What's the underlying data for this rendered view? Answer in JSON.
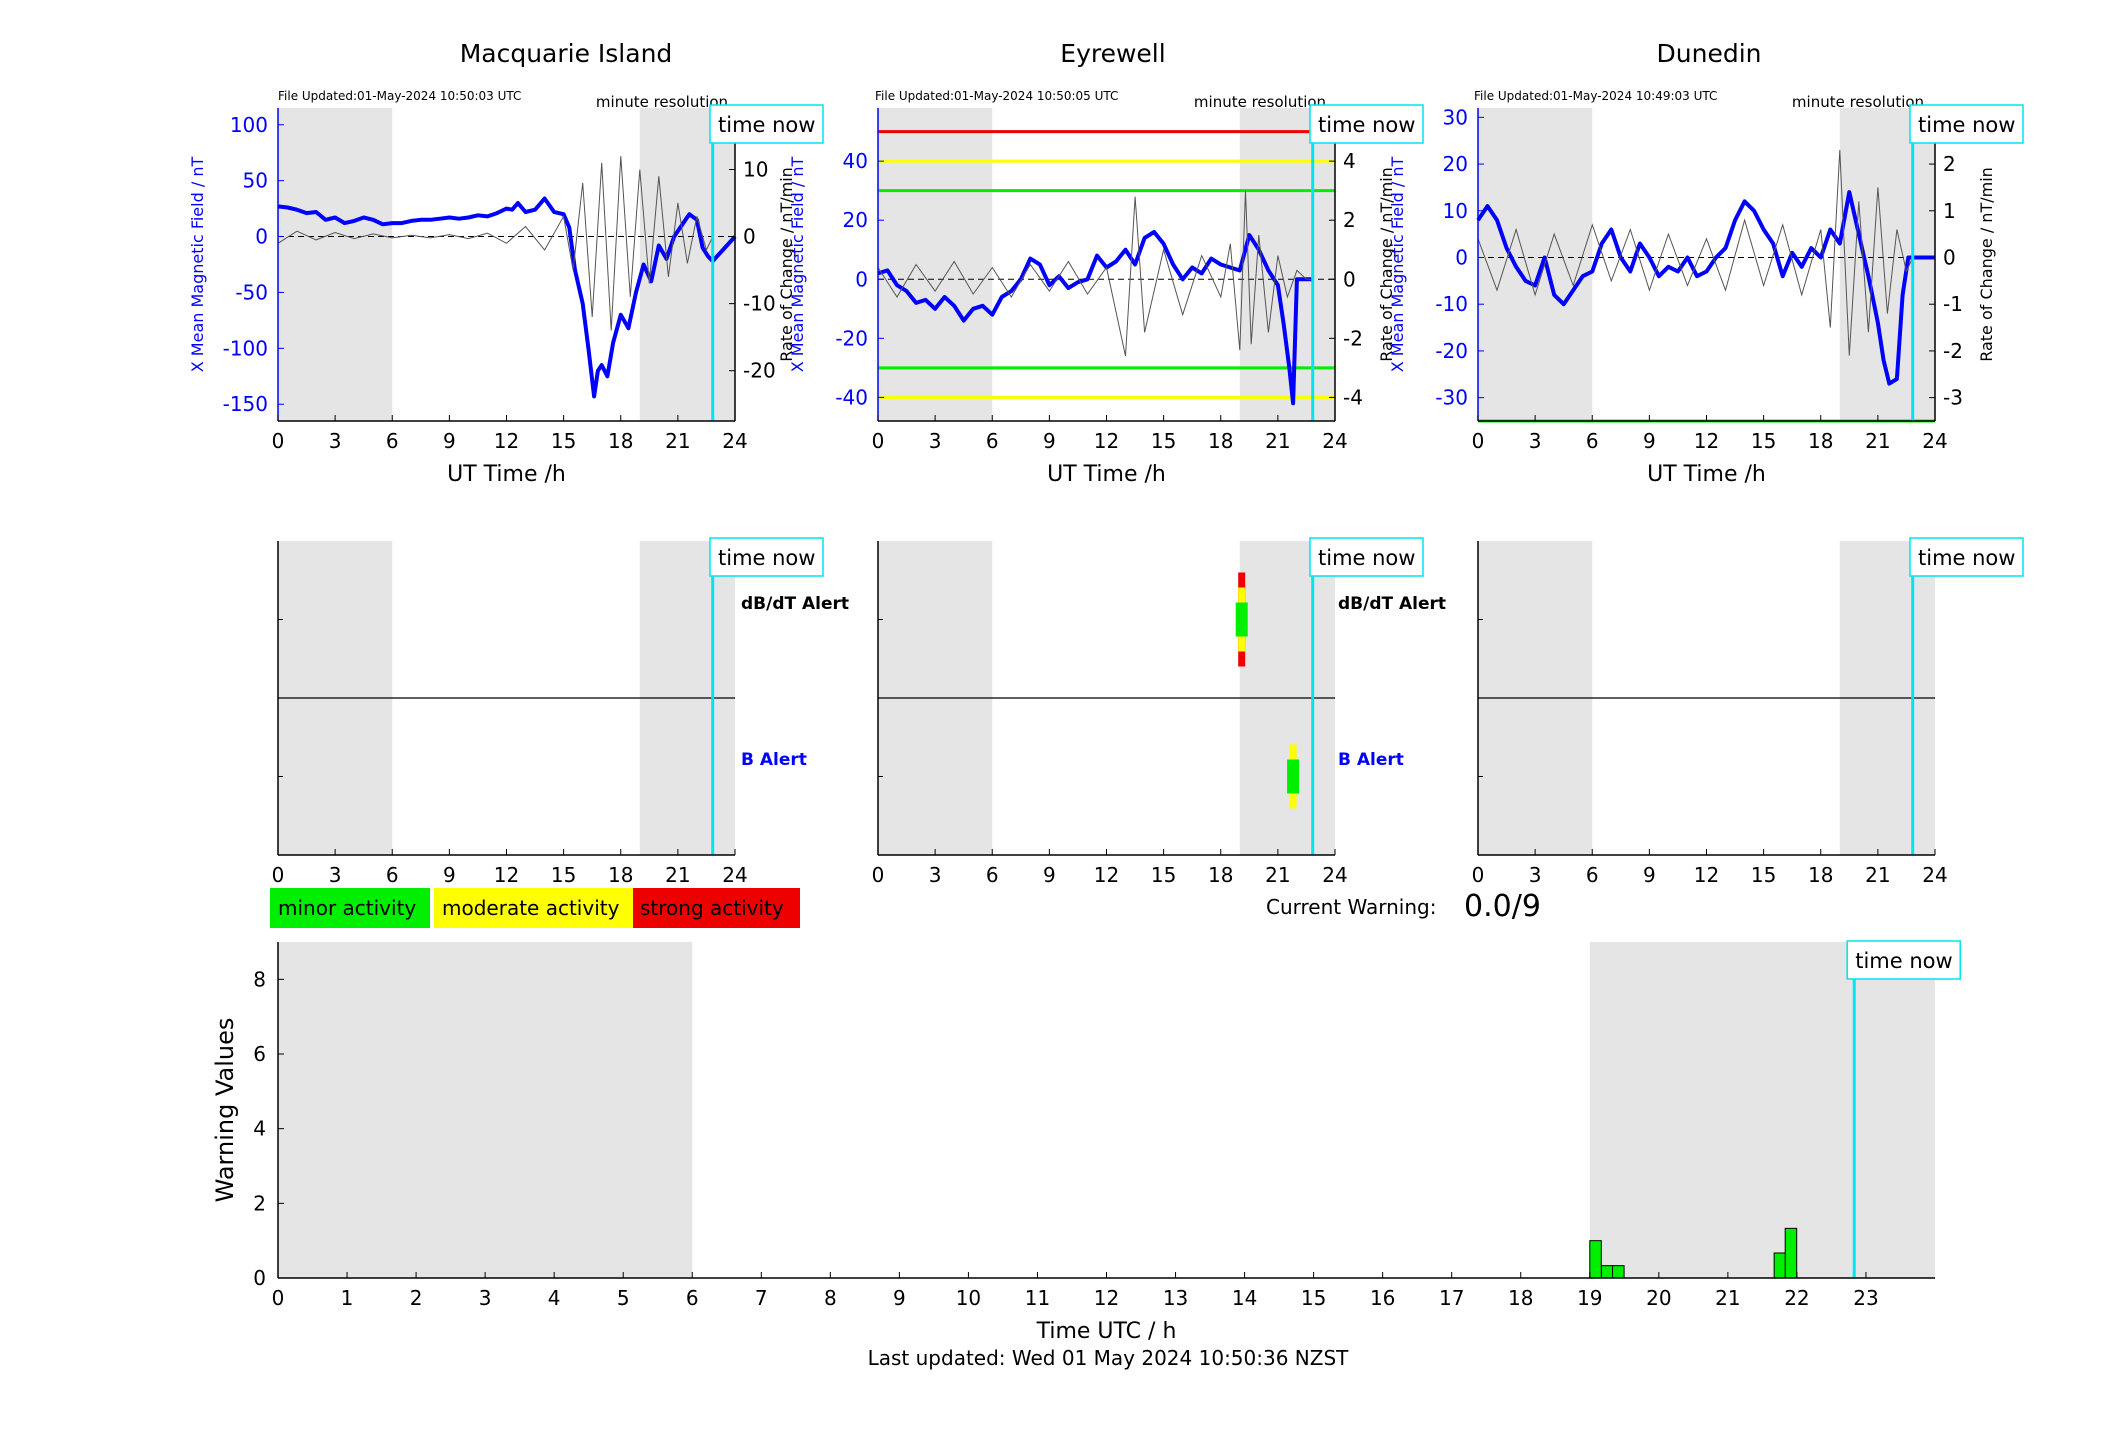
{
  "colors": {
    "field": "#0000ff",
    "rate": "#555555",
    "cyan": "#00e5ee",
    "night": "#e5e5e5",
    "minor": "#00ee00",
    "moderate": "#ffff00",
    "strong": "#ee0000"
  },
  "time_now_label": "time now",
  "minute_resolution_label": "minute resolution",
  "legend": {
    "minor": "minor activity",
    "moderate": "moderate activity",
    "strong": "strong activity"
  },
  "current_warning": {
    "label": "Current Warning:",
    "value": "0.0/9"
  },
  "footer": {
    "last_updated": "Last updated: Wed 01 May 2024 10:50:36 NZST"
  },
  "alerts": {
    "dbdt_label": "dB/dT Alert",
    "b_label": "B Alert"
  },
  "chart_data": [
    {
      "type": "line",
      "title": "Macquarie Island",
      "file_updated": "File Updated:01-May-2024 10:50:03 UTC",
      "xlabel": "UT Time /h",
      "ylabel": "X Mean Magnetic Field / nT",
      "ylabel_right": "Rate of Change / nT/min",
      "xlim": [
        0,
        24
      ],
      "ylim": [
        -165,
        115
      ],
      "ylim_right": [
        -27.5,
        19.17
      ],
      "xticks": [
        0,
        3,
        6,
        9,
        12,
        15,
        18,
        21,
        24
      ],
      "yticks": [
        100,
        50,
        0,
        -50,
        -100,
        -150
      ],
      "yticks_right": [
        10,
        0,
        -10,
        -20
      ],
      "night_bands": [
        [
          0,
          6
        ],
        [
          19,
          24
        ]
      ],
      "time_now": 22.83,
      "threshold_lines": [],
      "series": [
        {
          "style": "field",
          "x": [
            0,
            0.5,
            1,
            1.5,
            2,
            2.5,
            3,
            3.5,
            4,
            4.5,
            5,
            5.5,
            6,
            6.5,
            7,
            7.5,
            8,
            8.5,
            9,
            9.5,
            10,
            10.5,
            11,
            11.5,
            12,
            12.3,
            12.6,
            13,
            13.5,
            14,
            14.5,
            15,
            15.3,
            15.6,
            16,
            16.3,
            16.6,
            16.8,
            17,
            17.3,
            17.6,
            18,
            18.4,
            18.8,
            19.2,
            19.6,
            20,
            20.4,
            20.8,
            21.2,
            21.6,
            22,
            22.3,
            22.6,
            22.83,
            24
          ],
          "y": [
            27,
            26,
            24,
            21,
            22,
            15,
            17,
            12,
            14,
            17,
            15,
            11,
            12,
            12,
            14,
            15,
            15,
            16,
            17,
            16,
            17,
            19,
            18,
            21,
            25,
            24,
            30,
            22,
            24,
            34,
            22,
            20,
            8,
            -30,
            -60,
            -100,
            -143,
            -120,
            -115,
            -125,
            -95,
            -70,
            -82,
            -50,
            -25,
            -40,
            -8,
            -20,
            0,
            10,
            20,
            15,
            -10,
            -18,
            -22,
            0
          ]
        },
        {
          "style": "rate",
          "axis": "right",
          "x": [
            0,
            1,
            2,
            3,
            4,
            5,
            6,
            7,
            8,
            9,
            10,
            11,
            12,
            13,
            14,
            15,
            15.5,
            16,
            16.5,
            17,
            17.5,
            18,
            18.5,
            19,
            19.5,
            20,
            20.5,
            21,
            21.5,
            22,
            22.5,
            22.83
          ],
          "y": [
            -1,
            0.8,
            -0.5,
            0.6,
            -0.3,
            0.4,
            -0.2,
            0.2,
            -0.2,
            0.3,
            -0.3,
            0.5,
            -1,
            1.5,
            -2,
            3,
            -5,
            8,
            -12,
            11,
            -14,
            12,
            -9,
            10,
            -7,
            9,
            -6,
            5,
            -4,
            3,
            -2,
            0
          ]
        }
      ]
    },
    {
      "type": "line",
      "title": "Eyrewell",
      "file_updated": "File Updated:01-May-2024 10:50:05 UTC",
      "xlabel": "UT Time /h",
      "ylabel": "X Mean Magnetic Field / nT",
      "ylabel_right": "Rate of Change / nT/min",
      "xlim": [
        0,
        24
      ],
      "ylim": [
        -48,
        58
      ],
      "ylim_right": [
        -4.8,
        5.8
      ],
      "xticks": [
        0,
        3,
        6,
        9,
        12,
        15,
        18,
        21,
        24
      ],
      "yticks": [
        40,
        20,
        0,
        -20,
        -40
      ],
      "yticks_right": [
        4,
        2,
        0,
        -2,
        -4
      ],
      "night_bands": [
        [
          0,
          6
        ],
        [
          19,
          24
        ]
      ],
      "time_now": 22.83,
      "threshold_lines": [
        {
          "value": 50,
          "color": "#ee0000"
        },
        {
          "value": 40,
          "color": "#ffff00"
        },
        {
          "value": 30,
          "color": "#00ee00"
        },
        {
          "value": -30,
          "color": "#00ee00"
        },
        {
          "value": -40,
          "color": "#ffff00"
        }
      ],
      "series": [
        {
          "style": "field",
          "x": [
            0,
            0.5,
            1,
            1.5,
            2,
            2.5,
            3,
            3.5,
            4,
            4.5,
            5,
            5.5,
            6,
            6.5,
            7,
            7.5,
            8,
            8.5,
            9,
            9.5,
            10,
            10.5,
            11,
            11.5,
            12,
            12.5,
            13,
            13.5,
            14,
            14.5,
            15,
            15.5,
            16,
            16.5,
            17,
            17.5,
            18,
            18.5,
            19,
            19.5,
            20,
            20.5,
            21,
            21.3,
            21.6,
            21.8,
            22,
            22.5,
            22.83
          ],
          "y": [
            2,
            3,
            -2,
            -4,
            -8,
            -7,
            -10,
            -6,
            -9,
            -14,
            -10,
            -9,
            -12,
            -6,
            -4,
            0,
            7,
            5,
            -2,
            1,
            -3,
            -1,
            0,
            8,
            4,
            6,
            10,
            5,
            14,
            16,
            12,
            5,
            0,
            4,
            2,
            7,
            5,
            4,
            3,
            15,
            10,
            3,
            -2,
            -15,
            -30,
            -42,
            0,
            0,
            0
          ]
        },
        {
          "style": "rate",
          "axis": "right",
          "x": [
            0,
            1,
            2,
            3,
            4,
            5,
            6,
            7,
            8,
            9,
            10,
            11,
            12,
            13,
            13.5,
            14,
            15,
            16,
            17,
            18,
            18.5,
            19,
            19.3,
            19.6,
            20,
            20.5,
            21,
            21.5,
            22,
            22.5,
            22.83
          ],
          "y": [
            0.4,
            -0.6,
            0.5,
            -0.4,
            0.6,
            -0.5,
            0.4,
            -0.6,
            0.5,
            -0.4,
            0.6,
            -0.5,
            0.4,
            -2.6,
            2.8,
            -1.8,
            1,
            -1.2,
            0.8,
            -0.6,
            1.2,
            -2.4,
            3,
            -2.2,
            1.5,
            -1.8,
            0.8,
            -0.6,
            0.3,
            0,
            0
          ]
        }
      ]
    },
    {
      "type": "line",
      "title": "Dunedin",
      "file_updated": "File Updated:01-May-2024 10:49:03 UTC",
      "xlabel": "UT Time /h",
      "ylabel": "X Mean Magnetic Field / nT",
      "ylabel_right": "Rate of Change / nT/min",
      "xlim": [
        0,
        24
      ],
      "ylim": [
        -35,
        32
      ],
      "ylim_right": [
        -3.5,
        3.2
      ],
      "xticks": [
        0,
        3,
        6,
        9,
        12,
        15,
        18,
        21,
        24
      ],
      "yticks": [
        30,
        20,
        10,
        0,
        -10,
        -20,
        -30
      ],
      "yticks_right": [
        3,
        2,
        1,
        0,
        -1,
        -2,
        -3
      ],
      "night_bands": [
        [
          0,
          6
        ],
        [
          19,
          24
        ]
      ],
      "time_now": 22.83,
      "threshold_lines": [
        {
          "value": -35,
          "color": "#00ee00"
        }
      ],
      "series": [
        {
          "style": "field",
          "x": [
            0,
            0.5,
            1,
            1.5,
            2,
            2.5,
            3,
            3.5,
            4,
            4.5,
            5,
            5.5,
            6,
            6.5,
            7,
            7.5,
            8,
            8.5,
            9,
            9.5,
            10,
            10.5,
            11,
            11.5,
            12,
            12.5,
            13,
            13.5,
            14,
            14.5,
            15,
            15.5,
            16,
            16.5,
            17,
            17.5,
            18,
            18.5,
            19,
            19.5,
            20,
            20.5,
            21,
            21.3,
            21.6,
            22,
            22.3,
            22.6,
            22.83,
            24
          ],
          "y": [
            8,
            11,
            8,
            2,
            -2,
            -5,
            -6,
            0,
            -8,
            -10,
            -7,
            -4,
            -3,
            3,
            6,
            0,
            -3,
            3,
            0,
            -4,
            -2,
            -3,
            0,
            -4,
            -3,
            0,
            2,
            8,
            12,
            10,
            6,
            3,
            -4,
            1,
            -2,
            2,
            0,
            6,
            3,
            14,
            5,
            -4,
            -14,
            -22,
            -27,
            -26,
            -8,
            0,
            0,
            0
          ]
        },
        {
          "style": "rate",
          "axis": "right",
          "x": [
            0,
            1,
            2,
            3,
            4,
            5,
            6,
            7,
            8,
            9,
            10,
            11,
            12,
            13,
            14,
            15,
            16,
            17,
            18,
            18.5,
            19,
            19.5,
            20,
            20.5,
            21,
            21.5,
            22,
            22.5,
            22.83
          ],
          "y": [
            0.4,
            -0.7,
            0.6,
            -0.8,
            0.5,
            -0.6,
            0.7,
            -0.5,
            0.6,
            -0.7,
            0.5,
            -0.6,
            0.4,
            -0.7,
            0.8,
            -0.6,
            0.7,
            -0.8,
            0.6,
            -1.5,
            2.3,
            -2.1,
            1.2,
            -1.6,
            1.5,
            -1.2,
            0.6,
            -0.3,
            0
          ]
        }
      ]
    },
    {
      "type": "alert",
      "xlim": [
        0,
        24
      ],
      "xticks": [
        0,
        3,
        6,
        9,
        12,
        15,
        18,
        21,
        24
      ],
      "night_bands": [
        [
          0,
          6
        ],
        [
          19,
          24
        ]
      ],
      "time_now": 22.83,
      "dbdt_alerts": [],
      "b_alerts": []
    },
    {
      "type": "alert",
      "xlim": [
        0,
        24
      ],
      "xticks": [
        0,
        3,
        6,
        9,
        12,
        15,
        18,
        21,
        24
      ],
      "night_bands": [
        [
          0,
          6
        ],
        [
          19,
          24
        ]
      ],
      "time_now": 22.83,
      "dbdt_alerts": [
        {
          "x": 19.1,
          "level": 3
        }
      ],
      "b_alerts": [
        {
          "x": 21.8,
          "level": 2
        }
      ]
    },
    {
      "type": "alert",
      "xlim": [
        0,
        24
      ],
      "xticks": [
        0,
        3,
        6,
        9,
        12,
        15,
        18,
        21,
        24
      ],
      "night_bands": [
        [
          0,
          6
        ],
        [
          19,
          24
        ]
      ],
      "time_now": 22.83,
      "dbdt_alerts": [],
      "b_alerts": []
    },
    {
      "type": "bar",
      "xlabel": "Time UTC / h",
      "ylabel": "Warning Values",
      "xlim": [
        0,
        24
      ],
      "ylim": [
        0,
        9
      ],
      "xticks": [
        0,
        1,
        2,
        3,
        4,
        5,
        6,
        7,
        8,
        9,
        10,
        11,
        12,
        13,
        14,
        15,
        16,
        17,
        18,
        19,
        20,
        21,
        22,
        23
      ],
      "yticks": [
        0,
        2,
        4,
        6,
        8
      ],
      "night_bands": [
        [
          0,
          6
        ],
        [
          19,
          24
        ]
      ],
      "time_now": 22.83,
      "bars": [
        {
          "x": 19,
          "value": 1.0
        },
        {
          "x": 19.17,
          "value": 0.33
        },
        {
          "x": 19.33,
          "value": 0.33
        },
        {
          "x": 21.67,
          "value": 0.67
        },
        {
          "x": 21.83,
          "value": 1.33
        }
      ]
    }
  ]
}
